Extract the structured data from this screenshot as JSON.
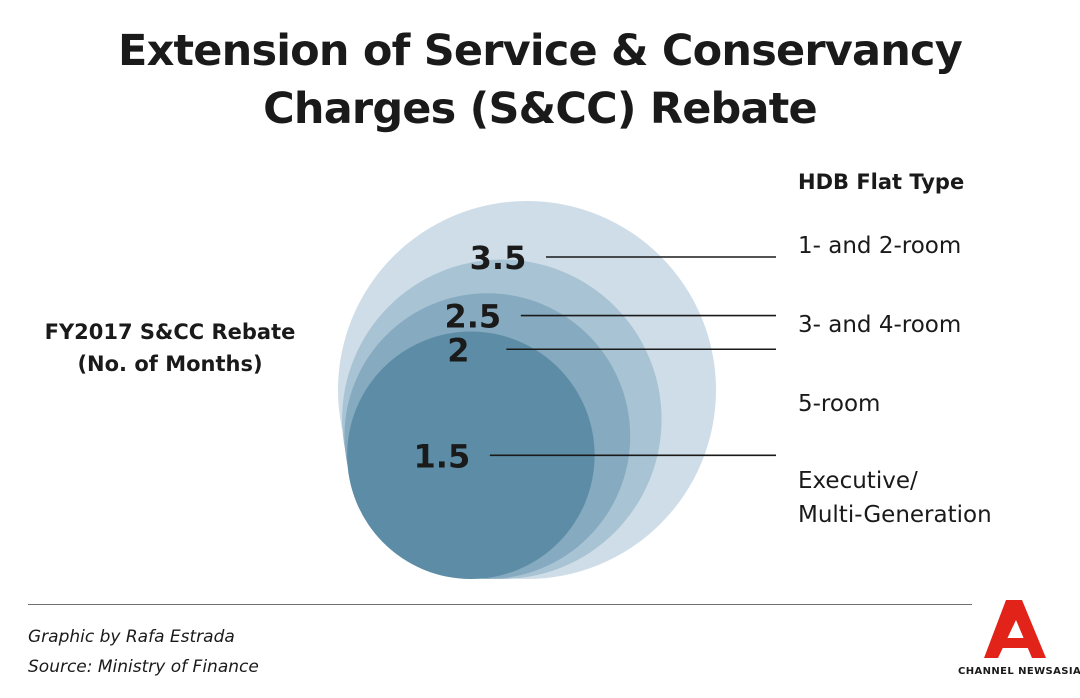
{
  "title": {
    "line1": "Extension of Service & Conservancy",
    "line2": "Charges (S&CC) Rebate"
  },
  "chart_data": {
    "type": "nested-bubble",
    "ylabel_line1": "FY2017 S&CC Rebate",
    "ylabel_line2": "(No. of Months)",
    "legend_title": "HDB Flat Type",
    "series": [
      {
        "category": "1- and 2-room",
        "value": 3.5,
        "label": "3.5",
        "color": "#cedde7"
      },
      {
        "category": "3- and 4-room",
        "value": 2.5,
        "label": "2.5",
        "color": "#a8c3d3"
      },
      {
        "category": "5-room",
        "value": 2,
        "label": "2",
        "color": "#86aabf"
      },
      {
        "category": "Executive/ Multi-Generation",
        "category_line1": "Executive/",
        "category_line2": "Multi-Generation",
        "value": 1.5,
        "label": "1.5",
        "color": "#5d8da6"
      }
    ]
  },
  "footer": {
    "credit": "Graphic by Rafa Estrada",
    "source": "Source: Ministry of Finance"
  },
  "logo": {
    "text": "CHANNEL NEWSASIA",
    "color": "#e2231a"
  }
}
